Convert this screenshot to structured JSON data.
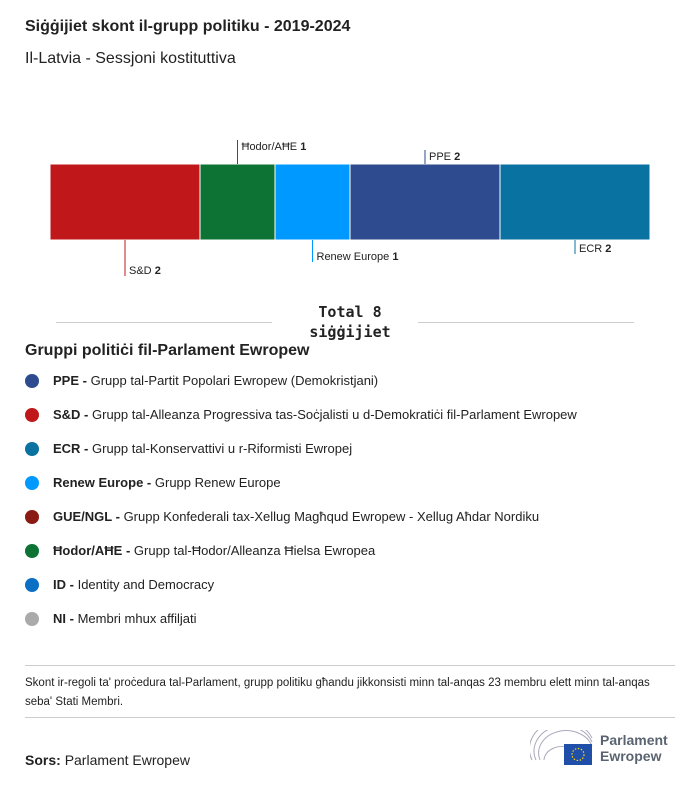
{
  "title": "Siġġijiet skont il-grupp politiku - 2019-2024",
  "subtitle": "Il-Latvia - Sessjoni kostituttiva",
  "chart_data": {
    "type": "bar",
    "orientation": "stacked-horizontal",
    "title": "Siġġijiet skont il-grupp politiku - 2019-2024",
    "categories": [
      "S&D",
      "Ħodor/AĦE",
      "Renew Europe",
      "PPE",
      "ECR"
    ],
    "values": [
      2,
      1,
      1,
      2,
      2
    ],
    "colors": [
      "#c0181a",
      "#0d7335",
      "#0099ff",
      "#2d4b8e",
      "#0a72a0"
    ],
    "label_pos": [
      "below",
      "above",
      "below",
      "above",
      "below"
    ],
    "total_label": "Total 8",
    "total_unit": "siġġijiet"
  },
  "legend": {
    "title": "Gruppi politiċi fil-Parlament Ewropew",
    "items": [
      {
        "abbr": "PPE -",
        "name": "Grupp tal-Partit Popolari Ewropew (Demokristjani)",
        "color": "#2d4b8e"
      },
      {
        "abbr": "S&D -",
        "name": "Grupp tal-Alleanza Progressiva tas-Soċjalisti u d-Demokratiċi fil-Parlament Ewropew",
        "color": "#c0181a"
      },
      {
        "abbr": "ECR -",
        "name": "Grupp tal-Konservattivi u r-Riformisti Ewropej",
        "color": "#0a72a0"
      },
      {
        "abbr": "Renew Europe -",
        "name": "Grupp Renew Europe",
        "color": "#0099ff"
      },
      {
        "abbr": "GUE/NGL -",
        "name": "Grupp Konfederali tax-Xellug Magħqud Ewropew - Xellug Aħdar Nordiku",
        "color": "#8b1a14"
      },
      {
        "abbr": "Ħodor/AĦE -",
        "name": "Grupp tal-Ħodor/Alleanza Ħielsa Ewropea",
        "color": "#0d7335"
      },
      {
        "abbr": "ID -",
        "name": "Identity and Democracy",
        "color": "#0b6fc4"
      },
      {
        "abbr": "NI -",
        "name": "Membri mhux affiljati",
        "color": "#aaaaaa"
      }
    ]
  },
  "note": "Skont ir-regoli ta' proċedura tal-Parlament, grupp politiku għandu jikkonsisti minn tal-anqas 23 membru elett minn tal-anqas seba' Stati Membri.",
  "source": {
    "label": "Sors:",
    "value": "Parlament Ewropew"
  },
  "logo": {
    "line1": "Parlament",
    "line2": "Ewropew"
  }
}
